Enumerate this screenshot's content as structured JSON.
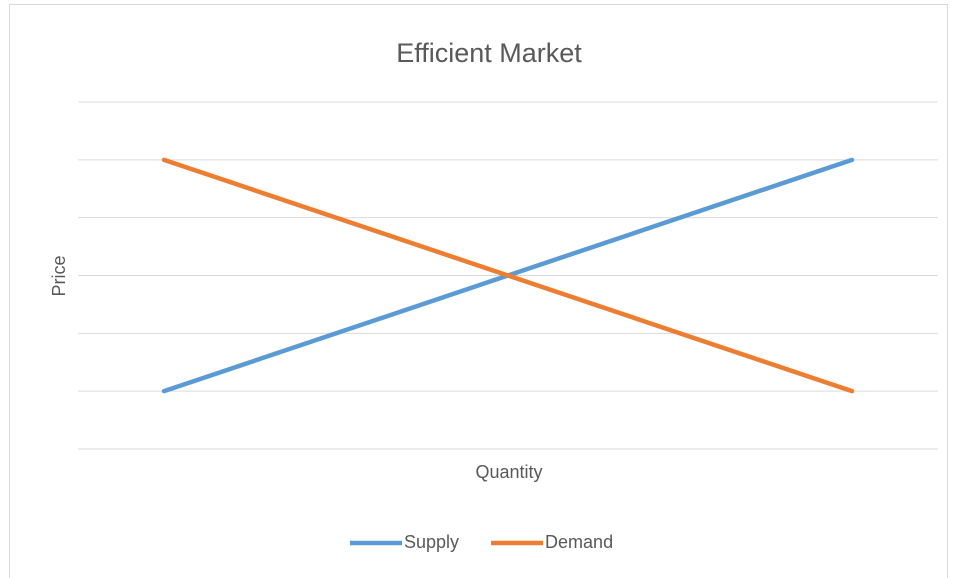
{
  "chart_data": {
    "type": "line",
    "title": "Efficient Market",
    "x_label": "Quantity",
    "y_label": "Price",
    "x": [
      1,
      9
    ],
    "xlim": [
      0,
      10
    ],
    "series": [
      {
        "name": "Supply",
        "color": "#5b9bd5",
        "values": [
          1,
          5
        ]
      },
      {
        "name": "Demand",
        "color": "#ed7d31",
        "values": [
          5,
          1
        ]
      }
    ],
    "ylim": [
      0,
      6
    ],
    "yticks": [
      0,
      1,
      2,
      3,
      4,
      5,
      6
    ],
    "grid": true,
    "legend": "bottom"
  }
}
